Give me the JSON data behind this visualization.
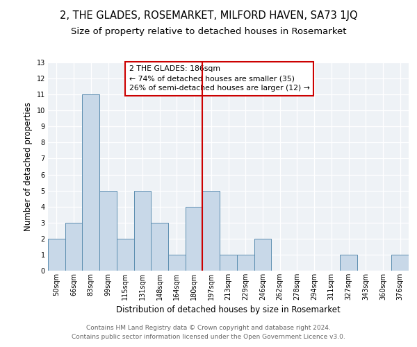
{
  "title": "2, THE GLADES, ROSEMARKET, MILFORD HAVEN, SA73 1JQ",
  "subtitle": "Size of property relative to detached houses in Rosemarket",
  "xlabel": "Distribution of detached houses by size in Rosemarket",
  "ylabel": "Number of detached properties",
  "categories": [
    "50sqm",
    "66sqm",
    "83sqm",
    "99sqm",
    "115sqm",
    "131sqm",
    "148sqm",
    "164sqm",
    "180sqm",
    "197sqm",
    "213sqm",
    "229sqm",
    "246sqm",
    "262sqm",
    "278sqm",
    "294sqm",
    "311sqm",
    "327sqm",
    "343sqm",
    "360sqm",
    "376sqm"
  ],
  "values": [
    2,
    3,
    11,
    5,
    2,
    5,
    3,
    1,
    4,
    5,
    1,
    1,
    2,
    0,
    0,
    0,
    0,
    1,
    0,
    0,
    1
  ],
  "bar_color": "#c8d8e8",
  "bar_edge_color": "#5b8db0",
  "annotation_text_line1": "2 THE GLADES: 186sqm",
  "annotation_text_line2": "← 74% of detached houses are smaller (35)",
  "annotation_text_line3": "26% of semi-detached houses are larger (12) →",
  "vline_color": "#cc0000",
  "annotation_box_edge_color": "#cc0000",
  "ylim": [
    0,
    13
  ],
  "yticks": [
    0,
    1,
    2,
    3,
    4,
    5,
    6,
    7,
    8,
    9,
    10,
    11,
    12,
    13
  ],
  "background_color": "#eef2f6",
  "footer_line1": "Contains HM Land Registry data © Crown copyright and database right 2024.",
  "footer_line2": "Contains public sector information licensed under the Open Government Licence v3.0.",
  "title_fontsize": 10.5,
  "subtitle_fontsize": 9.5,
  "xlabel_fontsize": 8.5,
  "ylabel_fontsize": 8.5,
  "tick_fontsize": 7,
  "annotation_fontsize": 7.8,
  "footer_fontsize": 6.5,
  "vline_x": 8.5
}
